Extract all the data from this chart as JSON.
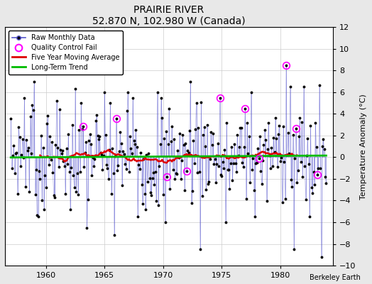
{
  "title": "PRAIRIE RIVER",
  "subtitle": "52.870 N, 102.980 W (Canada)",
  "ylabel": "Temperature Anomaly (°C)",
  "credit": "Berkeley Earth",
  "xlim": [
    1956.5,
    1984.5
  ],
  "ylim": [
    -10,
    12
  ],
  "yticks": [
    -10,
    -8,
    -6,
    -4,
    -2,
    0,
    2,
    4,
    6,
    8,
    10,
    12
  ],
  "xticks": [
    1960,
    1965,
    1970,
    1975,
    1980
  ],
  "bg_color": "#e8e8e8",
  "plot_bg_color": "#ffffff",
  "raw_line_color": "#5555cc",
  "raw_marker_color": "#000000",
  "moving_avg_color": "#dd0000",
  "trend_color": "#00bb00",
  "qc_fail_color": "#ff00ff",
  "grid_color": "#cccccc"
}
